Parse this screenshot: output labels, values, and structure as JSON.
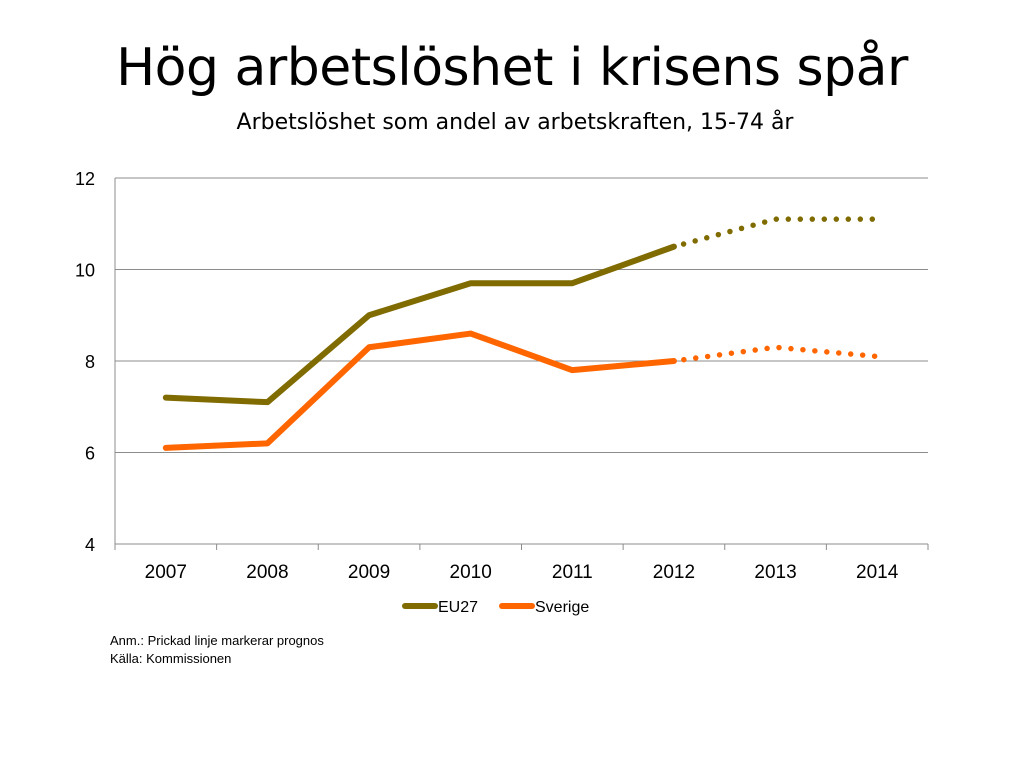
{
  "title": "Hög arbetslöshet i krisens spår",
  "subtitle": "Arbetslöshet som andel av arbetskraften, 15-74 år",
  "chart_data": {
    "type": "line",
    "categories": [
      "2007",
      "2008",
      "2009",
      "2010",
      "2011",
      "2012",
      "2013",
      "2014"
    ],
    "ylim": [
      4,
      12
    ],
    "yticks": [
      "4",
      "6",
      "8",
      "10",
      "12"
    ],
    "grid": true,
    "legend_position": "bottom",
    "forecast_from_index": 5,
    "series": [
      {
        "name": "EU27",
        "color": "#7F6B00",
        "values": [
          7.2,
          7.1,
          9.0,
          9.7,
          9.7,
          10.5,
          11.1,
          11.1
        ]
      },
      {
        "name": "Sverige",
        "color": "#FF6600",
        "values": [
          6.1,
          6.2,
          8.3,
          8.6,
          7.8,
          8.0,
          8.3,
          8.1
        ]
      }
    ]
  },
  "notes": {
    "line1": "Anm.: Prickad linje markerar prognos",
    "line2": "Källa: Kommissionen"
  }
}
